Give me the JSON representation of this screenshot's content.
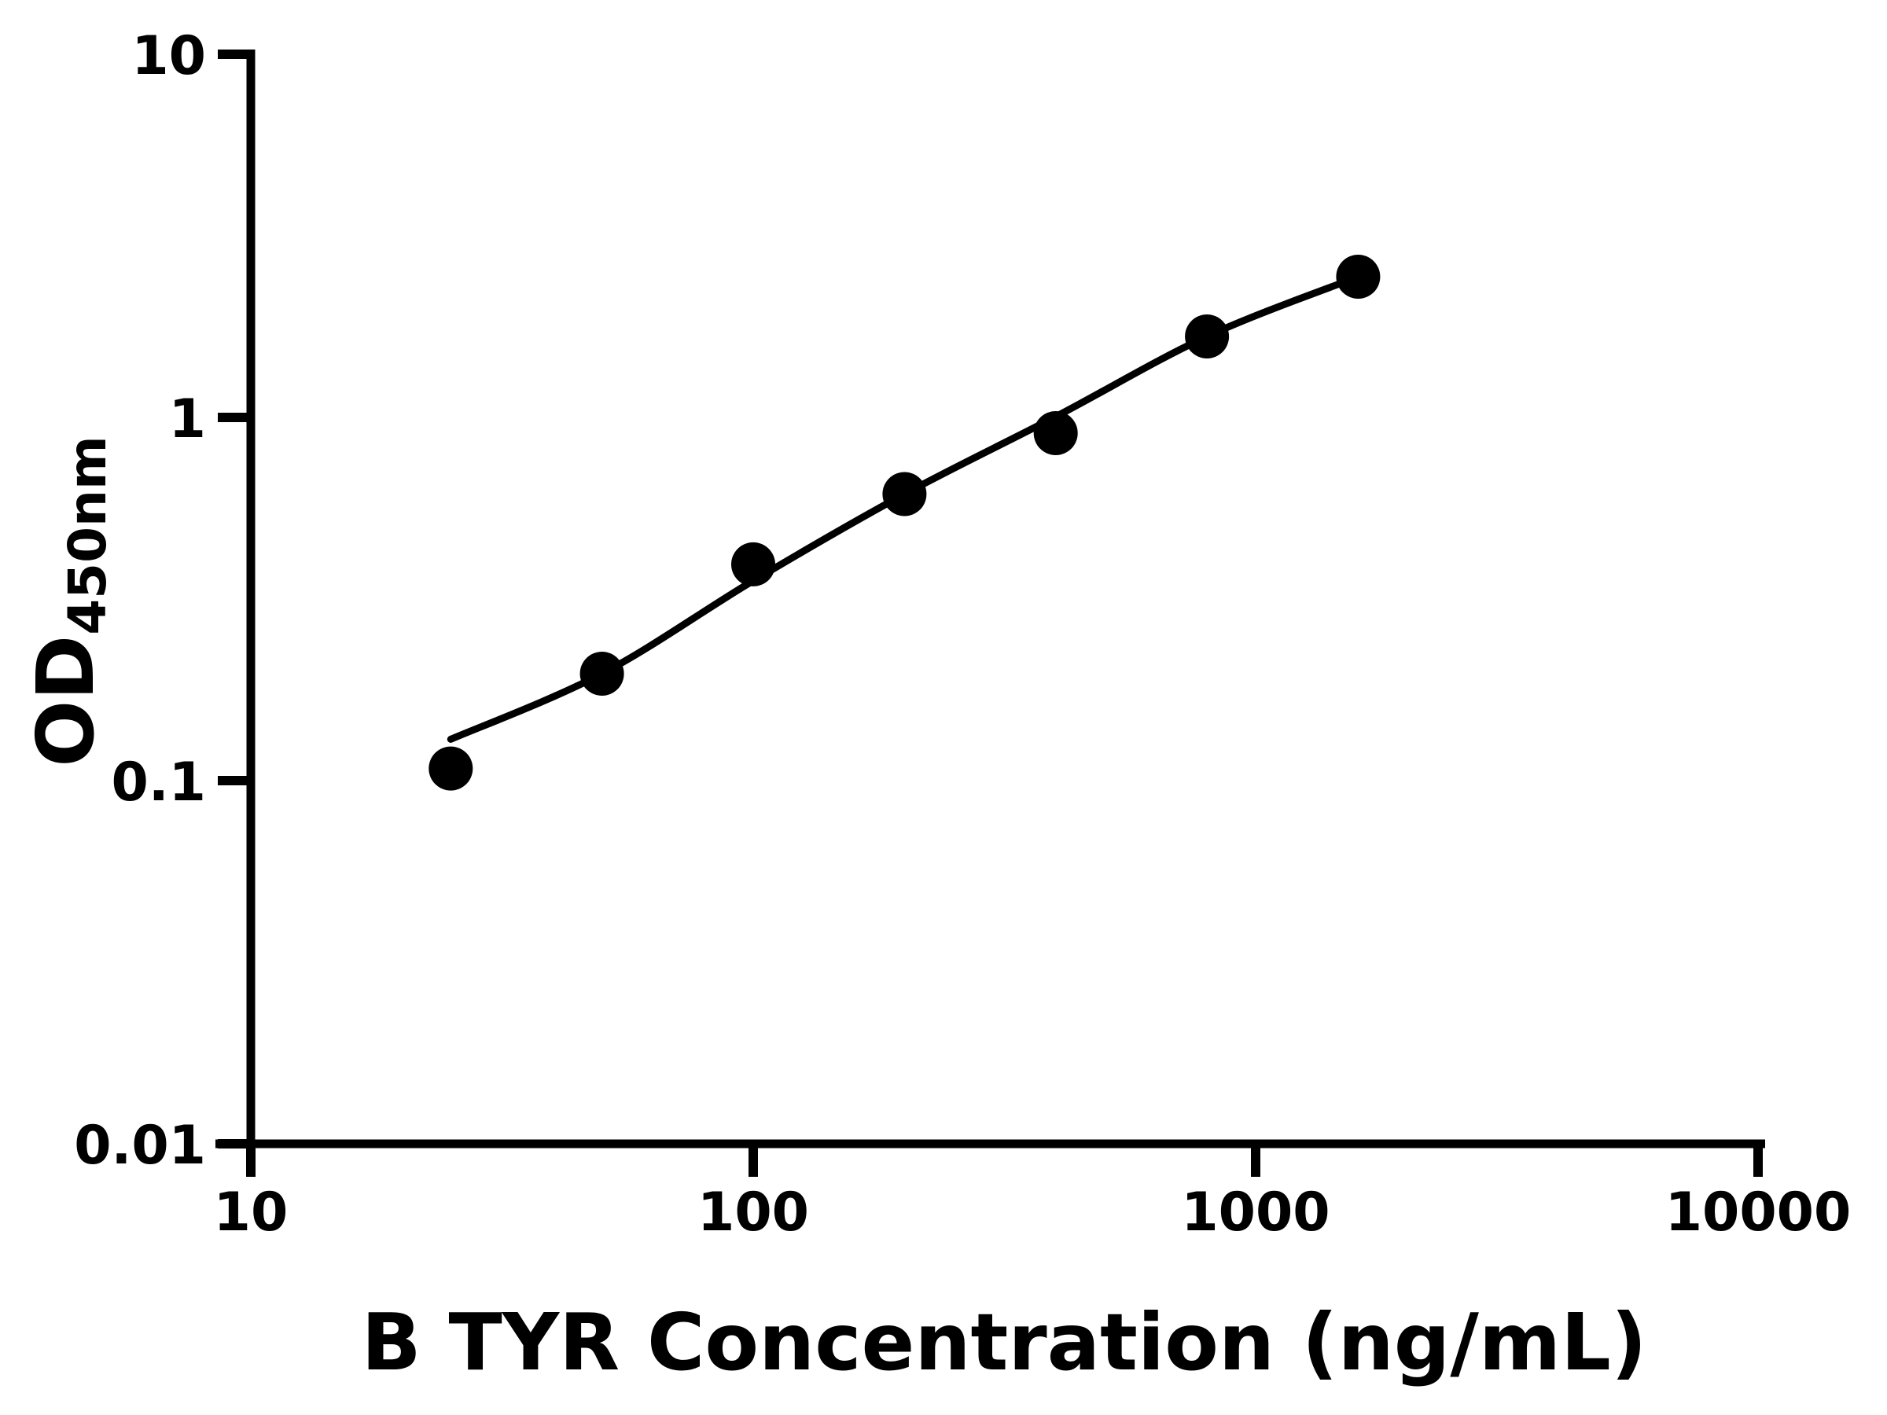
{
  "page": {
    "background_color": "#ffffff",
    "ink_color": "#000000"
  },
  "chart_data": {
    "type": "scatter",
    "title": "",
    "xlabel": "B TYR Concentration (ng/mL)",
    "ylabel_main": "OD",
    "ylabel_sub": "450nm",
    "x_scale": "log",
    "y_scale": "log",
    "xlim": [
      10,
      10000
    ],
    "ylim": [
      0.01,
      10
    ],
    "grid": false,
    "legend": "none",
    "x_ticks": [
      {
        "value": 10,
        "label": "10"
      },
      {
        "value": 100,
        "label": "100"
      },
      {
        "value": 1000,
        "label": "1000"
      },
      {
        "value": 10000,
        "label": "10000"
      }
    ],
    "y_ticks": [
      {
        "value": 10,
        "label": "10"
      },
      {
        "value": 1,
        "label": "1"
      },
      {
        "value": 0.1,
        "label": "0.1"
      },
      {
        "value": 0.01,
        "label": "0.01"
      }
    ],
    "series": [
      {
        "name": "standard-points",
        "type": "scatter",
        "marker": "circle",
        "color": "#000000",
        "points": [
          {
            "x": 25,
            "y": 0.108
          },
          {
            "x": 50,
            "y": 0.197
          },
          {
            "x": 100,
            "y": 0.394
          },
          {
            "x": 200,
            "y": 0.615
          },
          {
            "x": 400,
            "y": 0.905
          },
          {
            "x": 800,
            "y": 1.671
          },
          {
            "x": 1600,
            "y": 2.44
          }
        ]
      },
      {
        "name": "fit-curve",
        "type": "line",
        "color": "#000000",
        "points": [
          {
            "x": 25,
            "y": 0.13
          },
          {
            "x": 50,
            "y": 0.197
          },
          {
            "x": 100,
            "y": 0.355
          },
          {
            "x": 200,
            "y": 0.615
          },
          {
            "x": 400,
            "y": 1.005
          },
          {
            "x": 800,
            "y": 1.671
          },
          {
            "x": 1600,
            "y": 2.44
          }
        ]
      }
    ]
  }
}
